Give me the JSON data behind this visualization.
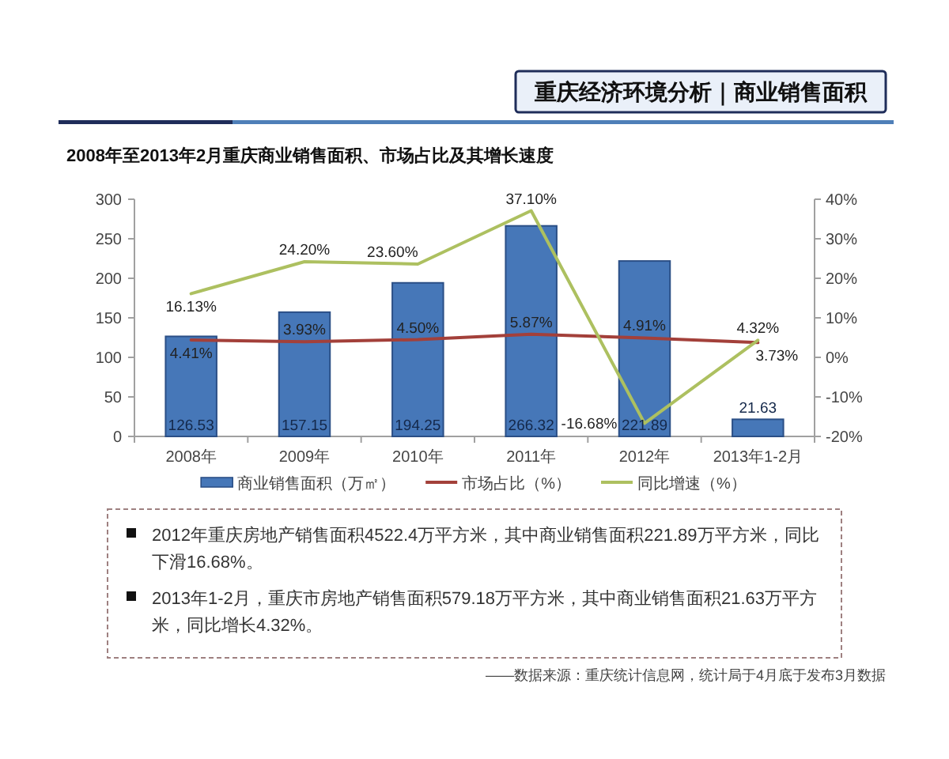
{
  "chart_data": {
    "type": "bar",
    "title": "重庆经济环境分析｜商业销售面积",
    "subtitle": "2008年至2013年2月重庆商业销售面积、市场占比及其增长速度",
    "categories": [
      "2008年",
      "2009年",
      "2010年",
      "2011年",
      "2012年",
      "2013年1-2月"
    ],
    "series": [
      {
        "name": "商业销售面积（万㎡）",
        "color": "#4677b8",
        "values": [
          126.53,
          157.15,
          194.25,
          266.32,
          221.89,
          21.63
        ],
        "value_labels": [
          "126.53",
          "157.15",
          "194.25",
          "266.32",
          "221.89",
          "21.63"
        ]
      },
      {
        "name": "市场占比（%）",
        "type": "line",
        "axis": "y2",
        "color": "#a3403a",
        "values": [
          4.41,
          3.93,
          4.5,
          5.87,
          4.91,
          3.73
        ],
        "value_labels": [
          "4.41%",
          "3.93%",
          "4.50%",
          "5.87%",
          "4.91%",
          "3.73%"
        ]
      },
      {
        "name": "同比增速（%）",
        "type": "line",
        "axis": "y2",
        "color": "#adc060",
        "values": [
          16.13,
          24.2,
          23.6,
          37.1,
          -16.68,
          4.32
        ],
        "value_labels": [
          "16.13%",
          "24.20%",
          "23.60%",
          "37.10%",
          "-16.68%",
          "4.32%"
        ]
      }
    ],
    "ylim": [
      0,
      300
    ],
    "yticks": [
      0,
      50,
      100,
      150,
      200,
      250,
      300
    ],
    "y2lim": [
      -20,
      40
    ],
    "y2ticks": [
      {
        "value": -20,
        "label": "-20%"
      },
      {
        "value": -10,
        "label": "-10%"
      },
      {
        "value": 0,
        "label": "0%"
      },
      {
        "value": 10,
        "label": "10%"
      },
      {
        "value": 20,
        "label": "20%"
      },
      {
        "value": 30,
        "label": "30%"
      },
      {
        "value": 40,
        "label": "40%"
      }
    ],
    "legend": "bottom",
    "annotations": [
      "2012年重庆房地产销售面积4522.4万平方米，其中商业销售面积221.89万平方米，同比下滑16.68%。",
      "2013年1-2月，重庆市房地产销售面积579.18万平方米，其中商业销售面积21.63万平方米，同比增长4.32%。",
      "——数据来源：重庆统计信息网，统计局于4月底于发布3月数据"
    ]
  }
}
